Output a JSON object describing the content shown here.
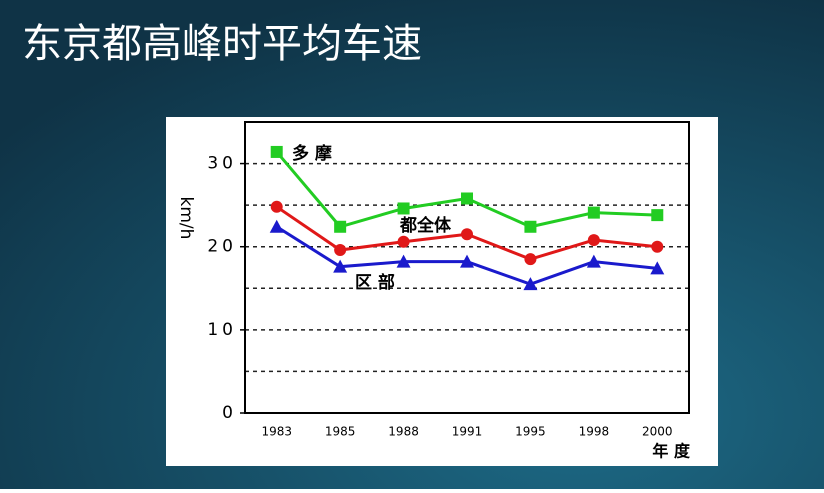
{
  "chart_data": {
    "type": "line",
    "title": "东京都高峰时平均车速",
    "categories": [
      "1983",
      "1985",
      "1988",
      "1991",
      "1995",
      "1998",
      "2000"
    ],
    "series": [
      {
        "name": "多 摩",
        "color": "#22cc22",
        "marker": "square",
        "values": [
          31.4,
          22.4,
          24.6,
          25.8,
          22.4,
          24.1,
          23.8
        ]
      },
      {
        "name": "都全体",
        "color": "#e01818",
        "marker": "circle",
        "values": [
          24.8,
          19.6,
          20.6,
          21.5,
          18.5,
          20.8,
          20.0
        ]
      },
      {
        "name": "区 部",
        "color": "#1a1acc",
        "marker": "triangle",
        "values": [
          22.4,
          17.6,
          18.2,
          18.2,
          15.5,
          18.2,
          17.4
        ]
      }
    ],
    "y_label": "km/h",
    "x_label": "年 度",
    "ylim": [
      0,
      35
    ],
    "yticks": [
      0,
      10,
      20,
      30
    ],
    "grid_values": [
      5,
      10,
      15,
      20,
      25,
      30
    ],
    "grid": true
  }
}
